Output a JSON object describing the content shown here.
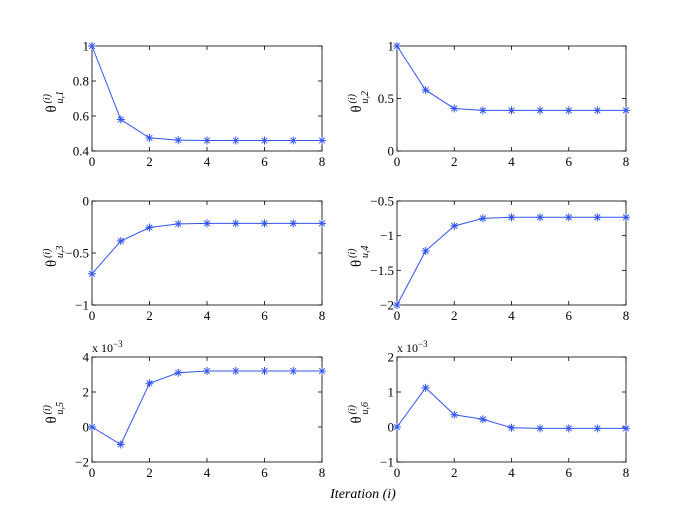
{
  "xlabel": "Iteration (i)",
  "series_color": "#3355ee",
  "chart_data": [
    {
      "type": "line",
      "ylabel_main": "θ",
      "ylabel_sup": "(i)",
      "ylabel_sub": "u,1",
      "exponent": "",
      "x": [
        0,
        1,
        2,
        3,
        4,
        5,
        6,
        7,
        8
      ],
      "values": [
        1.0,
        0.58,
        0.475,
        0.462,
        0.46,
        0.46,
        0.46,
        0.46,
        0.46
      ],
      "xlim": [
        0,
        8
      ],
      "ylim": [
        0.4,
        1
      ],
      "xticks": [
        0,
        2,
        4,
        6,
        8
      ],
      "xtick_labels": [
        "0",
        "2",
        "4",
        "6",
        "8"
      ],
      "yticks": [
        0.4,
        0.6,
        0.8,
        1
      ],
      "ytick_labels": [
        "0.4",
        "0.6",
        "0.8",
        "1"
      ]
    },
    {
      "type": "line",
      "ylabel_main": "θ",
      "ylabel_sup": "(i)",
      "ylabel_sub": "u,2",
      "exponent": "",
      "x": [
        0,
        1,
        2,
        3,
        4,
        5,
        6,
        7,
        8
      ],
      "values": [
        1.0,
        0.58,
        0.405,
        0.387,
        0.387,
        0.387,
        0.387,
        0.387,
        0.387
      ],
      "xlim": [
        0,
        8
      ],
      "ylim": [
        0,
        1
      ],
      "xticks": [
        0,
        2,
        4,
        6,
        8
      ],
      "xtick_labels": [
        "0",
        "2",
        "4",
        "6",
        "8"
      ],
      "yticks": [
        0,
        0.5,
        1
      ],
      "ytick_labels": [
        "0",
        "0.5",
        "1"
      ]
    },
    {
      "type": "line",
      "ylabel_main": "θ",
      "ylabel_sup": "(i)",
      "ylabel_sub": "u,3",
      "exponent": "",
      "x": [
        0,
        1,
        2,
        3,
        4,
        5,
        6,
        7,
        8
      ],
      "values": [
        -0.7,
        -0.385,
        -0.255,
        -0.22,
        -0.215,
        -0.215,
        -0.215,
        -0.215,
        -0.215
      ],
      "xlim": [
        0,
        8
      ],
      "ylim": [
        -1,
        0
      ],
      "xticks": [
        0,
        2,
        4,
        6,
        8
      ],
      "xtick_labels": [
        "0",
        "2",
        "4",
        "6",
        "8"
      ],
      "yticks": [
        -1,
        -0.5,
        0
      ],
      "ytick_labels": [
        "−1",
        "−0.5",
        "0"
      ]
    },
    {
      "type": "line",
      "ylabel_main": "θ",
      "ylabel_sup": "(i)",
      "ylabel_sub": "u,4",
      "exponent": "",
      "x": [
        0,
        1,
        2,
        3,
        4,
        5,
        6,
        7,
        8
      ],
      "values": [
        -2.0,
        -1.22,
        -0.86,
        -0.75,
        -0.735,
        -0.735,
        -0.735,
        -0.735,
        -0.735
      ],
      "xlim": [
        0,
        8
      ],
      "ylim": [
        -2,
        -0.5
      ],
      "xticks": [
        0,
        2,
        4,
        6,
        8
      ],
      "xtick_labels": [
        "0",
        "2",
        "4",
        "6",
        "8"
      ],
      "yticks": [
        -2,
        -1.5,
        -1,
        -0.5
      ],
      "ytick_labels": [
        "−2",
        "−1.5",
        "−1",
        "−0.5"
      ]
    },
    {
      "type": "line",
      "ylabel_main": "θ",
      "ylabel_sup": "(i)",
      "ylabel_sub": "u,5",
      "exponent": "x 10",
      "exponent_power": "−3",
      "x": [
        0,
        1,
        2,
        3,
        4,
        5,
        6,
        7,
        8
      ],
      "values": [
        0.0,
        -0.001,
        0.0025,
        0.0031,
        0.0032,
        0.0032,
        0.0032,
        0.0032,
        0.0032
      ],
      "xlim": [
        0,
        8
      ],
      "ylim": [
        -0.002,
        0.004
      ],
      "xticks": [
        0,
        2,
        4,
        6,
        8
      ],
      "xtick_labels": [
        "0",
        "2",
        "4",
        "6",
        "8"
      ],
      "yticks": [
        -0.002,
        0,
        0.002,
        0.004
      ],
      "ytick_labels": [
        "−2",
        "0",
        "2",
        "4"
      ]
    },
    {
      "type": "line",
      "ylabel_main": "θ",
      "ylabel_sup": "(i)",
      "ylabel_sub": "u,6",
      "exponent": "x 10",
      "exponent_power": "−3",
      "x": [
        0,
        1,
        2,
        3,
        4,
        5,
        6,
        7,
        8
      ],
      "values": [
        0.0,
        0.00112,
        0.00035,
        0.00022,
        -2e-05,
        -4e-05,
        -4e-05,
        -4e-05,
        -4e-05
      ],
      "xlim": [
        0,
        8
      ],
      "ylim": [
        -0.001,
        0.002
      ],
      "xticks": [
        0,
        2,
        4,
        6,
        8
      ],
      "xtick_labels": [
        "0",
        "2",
        "4",
        "6",
        "8"
      ],
      "yticks": [
        -0.001,
        0,
        0.001,
        0.002
      ],
      "ytick_labels": [
        "−1",
        "0",
        "1",
        "2"
      ]
    }
  ]
}
